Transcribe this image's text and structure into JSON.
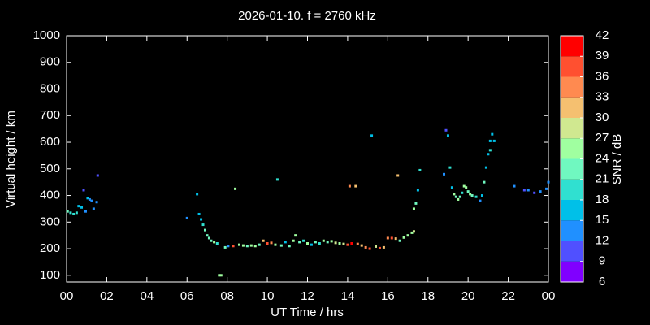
{
  "chart_data": {
    "type": "scatter",
    "title": "2026-01-10. f = 2760 kHz",
    "x_label": "UT Time / hrs",
    "y_label": "Virtual height / km",
    "xlim": [
      0,
      24
    ],
    "xticks": [
      {
        "value": 0,
        "label": "00"
      },
      {
        "value": 2,
        "label": "02"
      },
      {
        "value": 4,
        "label": "04"
      },
      {
        "value": 6,
        "label": "06"
      },
      {
        "value": 8,
        "label": "08"
      },
      10,
      12,
      14,
      16,
      18,
      20,
      22,
      {
        "value": 24,
        "label": "00"
      }
    ],
    "ylim": [
      75,
      1000
    ],
    "yticks": [
      100,
      200,
      300,
      400,
      500,
      600,
      700,
      800,
      900,
      1000
    ],
    "x": [
      0.05,
      0.2,
      0.35,
      0.5,
      0.6,
      0.75,
      0.85,
      0.95,
      1.05,
      1.15,
      1.25,
      1.35,
      1.5,
      1.55,
      6.0,
      6.5,
      6.6,
      6.7,
      6.8,
      6.9,
      7.0,
      7.1,
      7.2,
      7.35,
      7.5,
      7.6,
      7.7,
      7.9,
      8.05,
      8.3,
      8.4,
      8.6,
      8.8,
      9.0,
      9.2,
      9.4,
      9.6,
      9.8,
      10.0,
      10.2,
      10.4,
      10.5,
      10.7,
      10.9,
      11.1,
      11.3,
      11.4,
      11.6,
      11.8,
      12.0,
      12.2,
      12.4,
      12.6,
      12.8,
      13.0,
      13.2,
      13.4,
      13.6,
      13.8,
      14.0,
      14.1,
      14.2,
      14.4,
      14.5,
      14.7,
      14.9,
      15.1,
      15.2,
      15.4,
      15.6,
      15.8,
      16.0,
      16.2,
      16.4,
      16.5,
      16.6,
      16.8,
      17.0,
      17.2,
      17.3,
      17.3,
      17.4,
      17.5,
      17.6,
      18.8,
      18.9,
      19.0,
      19.1,
      19.2,
      19.3,
      19.4,
      19.5,
      19.6,
      19.7,
      19.8,
      19.9,
      20.0,
      20.1,
      20.2,
      20.4,
      20.6,
      20.7,
      20.8,
      20.9,
      21.0,
      21.1,
      21.2,
      21.3,
      21.1,
      22.3,
      22.8,
      23.0,
      23.3,
      23.6,
      23.9,
      24.0
    ],
    "y": [
      340,
      335,
      330,
      335,
      360,
      355,
      420,
      340,
      390,
      385,
      380,
      350,
      375,
      475,
      315,
      405,
      330,
      310,
      290,
      270,
      250,
      240,
      230,
      225,
      220,
      100,
      100,
      205,
      210,
      210,
      425,
      215,
      212,
      210,
      212,
      210,
      215,
      230,
      220,
      222,
      215,
      460,
      212,
      225,
      210,
      230,
      250,
      225,
      230,
      220,
      215,
      225,
      220,
      230,
      225,
      228,
      222,
      220,
      218,
      215,
      435,
      220,
      435,
      218,
      212,
      205,
      200,
      625,
      208,
      202,
      205,
      240,
      240,
      238,
      475,
      230,
      242,
      250,
      260,
      265,
      350,
      370,
      420,
      495,
      480,
      645,
      625,
      505,
      430,
      405,
      395,
      385,
      395,
      410,
      435,
      430,
      415,
      405,
      400,
      395,
      380,
      400,
      450,
      505,
      555,
      570,
      630,
      605,
      605,
      435,
      420,
      420,
      410,
      415,
      425,
      450
    ],
    "snr": [
      21,
      19,
      20,
      20,
      17,
      16,
      11,
      14,
      15,
      14,
      12,
      14,
      12,
      10,
      12,
      16,
      15,
      17,
      19,
      21,
      22,
      22,
      23,
      24,
      20,
      24,
      25,
      21,
      12,
      36,
      25,
      25,
      24,
      22,
      26,
      24,
      22,
      31,
      37,
      33,
      25,
      20,
      22,
      17,
      21,
      26,
      25,
      22,
      20,
      24,
      17,
      23,
      19,
      25,
      22,
      24,
      27,
      25,
      28,
      38,
      33,
      40,
      32,
      35,
      32,
      34,
      38,
      16,
      27,
      37,
      32,
      34,
      38,
      31,
      31,
      21,
      25,
      24,
      26,
      29,
      26,
      23,
      17,
      19,
      14,
      11,
      15,
      19,
      17,
      24,
      22,
      25,
      23,
      20,
      26,
      24,
      22,
      25,
      21,
      18,
      12,
      15,
      21,
      16,
      16,
      18,
      16,
      17,
      15,
      12,
      11,
      13,
      11,
      12,
      13,
      13
    ],
    "colorbar": {
      "label": "SNR / dB",
      "ticks": [
        6,
        9,
        12,
        15,
        18,
        21,
        24,
        27,
        30,
        33,
        36,
        39,
        42
      ],
      "colors": [
        "#8000ff",
        "#5050ff",
        "#2090ff",
        "#00c0e8",
        "#30e0d0",
        "#70f8c0",
        "#a0ffa0",
        "#d0e890",
        "#f5c070",
        "#ff8a50",
        "#ff5030",
        "#ff0000"
      ]
    }
  }
}
